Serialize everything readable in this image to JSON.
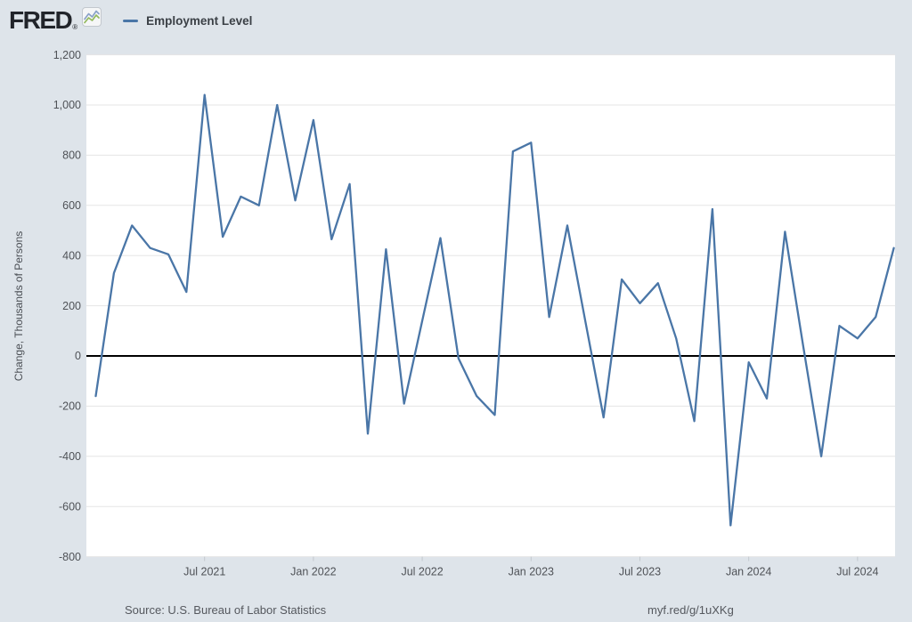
{
  "header": {
    "logo_text": "FRED",
    "logo_registered": "®",
    "logo_icon": "dual-sparkline-icon",
    "legend": {
      "series_label": "Employment Level"
    }
  },
  "y_axis": {
    "title": "Change, Thousands of Persons",
    "tick_labels": [
      "1,200",
      "1,000",
      "800",
      "600",
      "400",
      "200",
      "0",
      "-200",
      "-400",
      "-600",
      "-800"
    ],
    "tick_values": [
      1200,
      1000,
      800,
      600,
      400,
      200,
      0,
      -200,
      -400,
      -600,
      -800
    ]
  },
  "x_axis": {
    "tick_labels": [
      "Jul 2021",
      "Jan 2022",
      "Jul 2022",
      "Jan 2023",
      "Jul 2023",
      "Jan 2024",
      "Jul 2024"
    ],
    "tick_month_indices": [
      6,
      12,
      18,
      24,
      30,
      36,
      42
    ]
  },
  "footer": {
    "source": "Source: U.S. Bureau of Labor Statistics",
    "link": "myf.red/g/1uXKg"
  },
  "colors": {
    "background": "#dee4ea",
    "plot_background": "#ffffff",
    "grid": "#e5e5e5",
    "zero_line": "#000000",
    "series_line": "#4a76a7",
    "tick_text": "#4f5257",
    "axis_tick_mark": "#c3c8ce",
    "logo_icon_blue": "#8aa2c8",
    "logo_icon_green": "#92b95c"
  },
  "chart_data": {
    "type": "line",
    "title": "Employment Level",
    "ylabel": "Change, Thousands of Persons",
    "ylim": [
      -800,
      1200
    ],
    "grid": true,
    "zero_line": true,
    "legend_position": "top-left",
    "x": [
      "Jan 2021",
      "Feb 2021",
      "Mar 2021",
      "Apr 2021",
      "May 2021",
      "Jun 2021",
      "Jul 2021",
      "Aug 2021",
      "Sep 2021",
      "Oct 2021",
      "Nov 2021",
      "Dec 2021",
      "Jan 2022",
      "Feb 2022",
      "Mar 2022",
      "Apr 2022",
      "May 2022",
      "Jun 2022",
      "Jul 2022",
      "Aug 2022",
      "Sep 2022",
      "Oct 2022",
      "Nov 2022",
      "Dec 2022",
      "Jan 2023",
      "Feb 2023",
      "Mar 2023",
      "Apr 2023",
      "May 2023",
      "Jun 2023",
      "Jul 2023",
      "Aug 2023",
      "Sep 2023",
      "Oct 2023",
      "Nov 2023",
      "Dec 2023",
      "Jan 2024",
      "Feb 2024",
      "Mar 2024",
      "Apr 2024",
      "May 2024",
      "Jun 2024",
      "Jul 2024",
      "Aug 2024",
      "Sep 2024"
    ],
    "series": [
      {
        "name": "Employment Level",
        "units": "Change, Thousands of Persons",
        "values": [
          -160,
          330,
          520,
          430,
          405,
          255,
          1040,
          475,
          635,
          600,
          1000,
          620,
          940,
          465,
          685,
          -310,
          425,
          -190,
          140,
          470,
          -10,
          -160,
          -235,
          815,
          850,
          155,
          520,
          135,
          -245,
          305,
          210,
          290,
          70,
          -260,
          585,
          -675,
          -25,
          -170,
          495,
          40,
          -400,
          120,
          70,
          155,
          430
        ]
      }
    ]
  }
}
